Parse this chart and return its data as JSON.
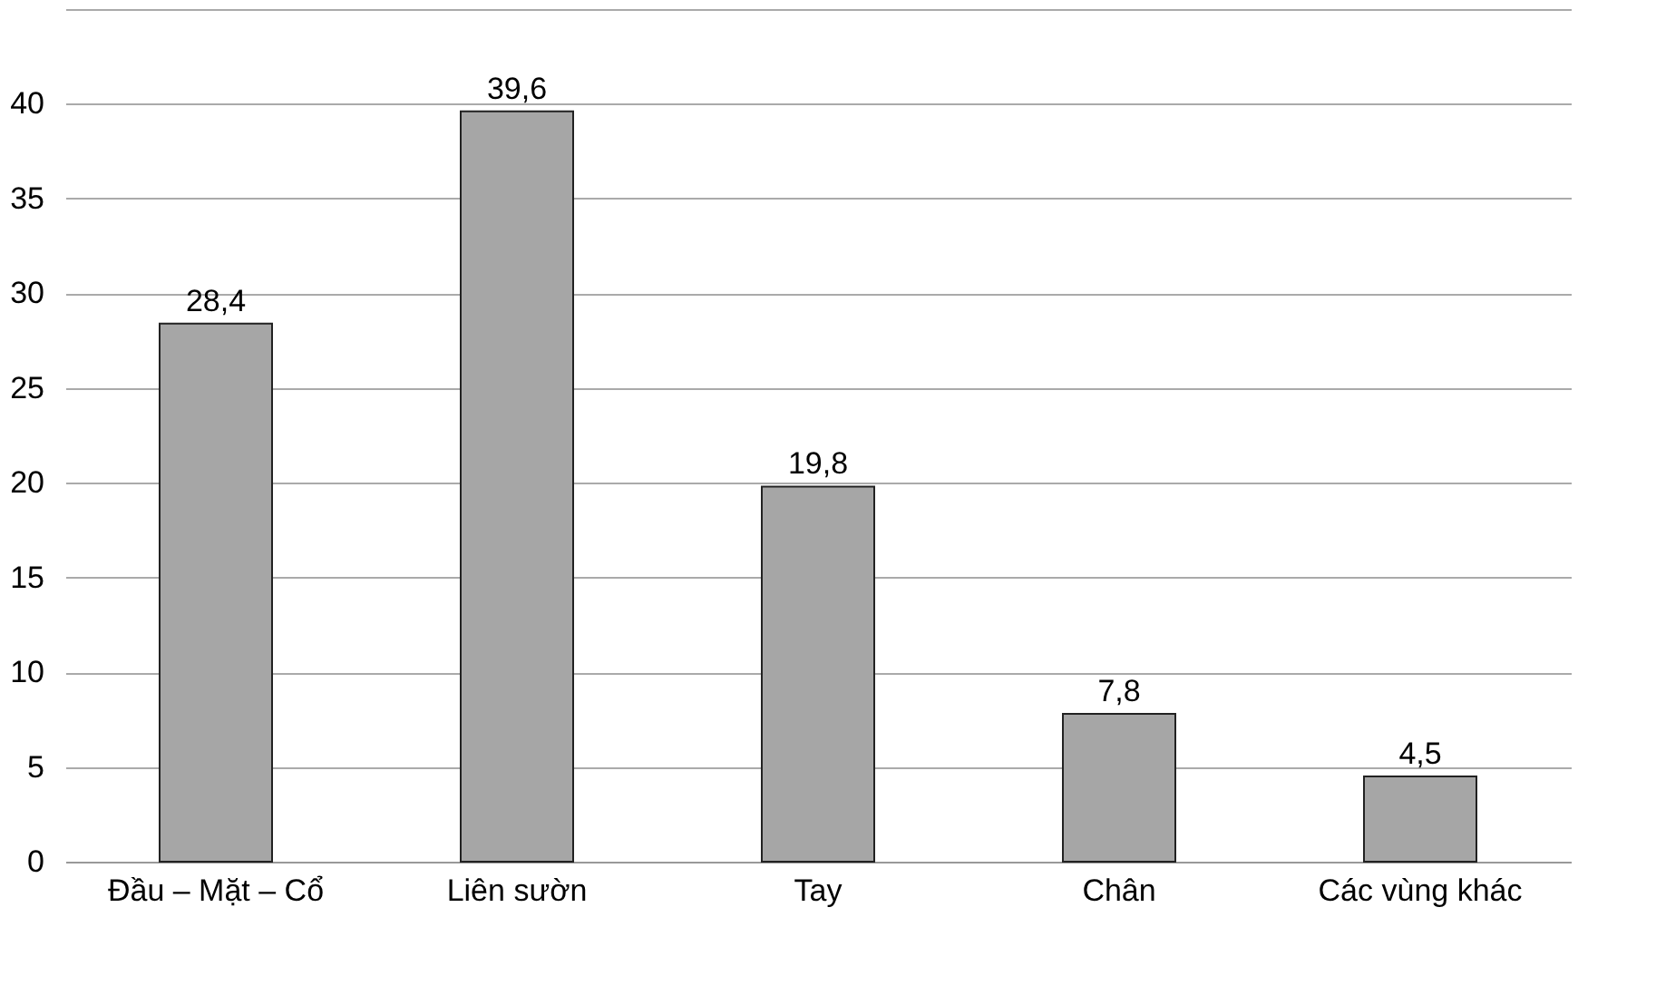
{
  "chart_data": {
    "type": "bar",
    "categories": [
      "Đầu – Mặt – Cổ",
      "Liên sườn",
      "Tay",
      "Chân",
      "Các vùng khác"
    ],
    "values": [
      28.4,
      39.6,
      19.8,
      7.8,
      4.5
    ],
    "value_labels": [
      "28,4",
      "39,6",
      "19,8",
      "7,8",
      "4,5"
    ],
    "color": "#a6a6a6",
    "ylim": [
      0,
      45
    ],
    "yticks": [
      0,
      5,
      10,
      15,
      20,
      25,
      30,
      35,
      40,
      {
        "value": 45,
        "label": null
      }
    ],
    "grid": true
  }
}
